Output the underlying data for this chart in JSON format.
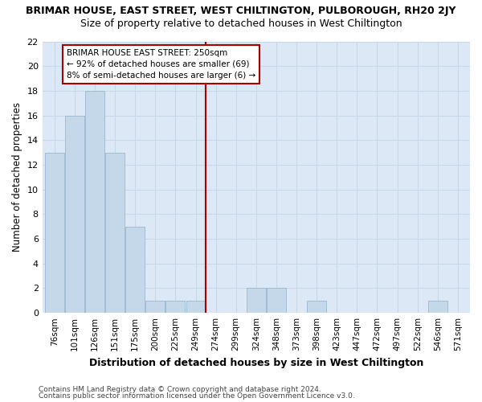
{
  "title": "BRIMAR HOUSE, EAST STREET, WEST CHILTINGTON, PULBOROUGH, RH20 2JY",
  "subtitle": "Size of property relative to detached houses in West Chiltington",
  "xlabel": "Distribution of detached houses by size in West Chiltington",
  "ylabel": "Number of detached properties",
  "categories": [
    "76sqm",
    "101sqm",
    "126sqm",
    "151sqm",
    "175sqm",
    "200sqm",
    "225sqm",
    "249sqm",
    "274sqm",
    "299sqm",
    "324sqm",
    "348sqm",
    "373sqm",
    "398sqm",
    "423sqm",
    "447sqm",
    "472sqm",
    "497sqm",
    "522sqm",
    "546sqm",
    "571sqm"
  ],
  "values": [
    13,
    16,
    18,
    13,
    7,
    1,
    1,
    1,
    0,
    0,
    2,
    2,
    0,
    1,
    0,
    0,
    0,
    0,
    0,
    1,
    0
  ],
  "bar_color": "#c5d8ea",
  "bar_edge_color": "#a0bdd4",
  "vline_x": 7.5,
  "vline_color": "#aa0000",
  "annotation_line1": "BRIMAR HOUSE EAST STREET: 250sqm",
  "annotation_line2": "← 92% of detached houses are smaller (69)",
  "annotation_line3": "8% of semi-detached houses are larger (6) →",
  "annotation_box_color": "#aa0000",
  "ylim": [
    0,
    22
  ],
  "yticks": [
    0,
    2,
    4,
    6,
    8,
    10,
    12,
    14,
    16,
    18,
    20,
    22
  ],
  "grid_color": "#c8d8ea",
  "footer1": "Contains HM Land Registry data © Crown copyright and database right 2024.",
  "footer2": "Contains public sector information licensed under the Open Government Licence v3.0.",
  "plot_bg_color": "#dce8f5",
  "fig_bg_color": "#ffffff"
}
